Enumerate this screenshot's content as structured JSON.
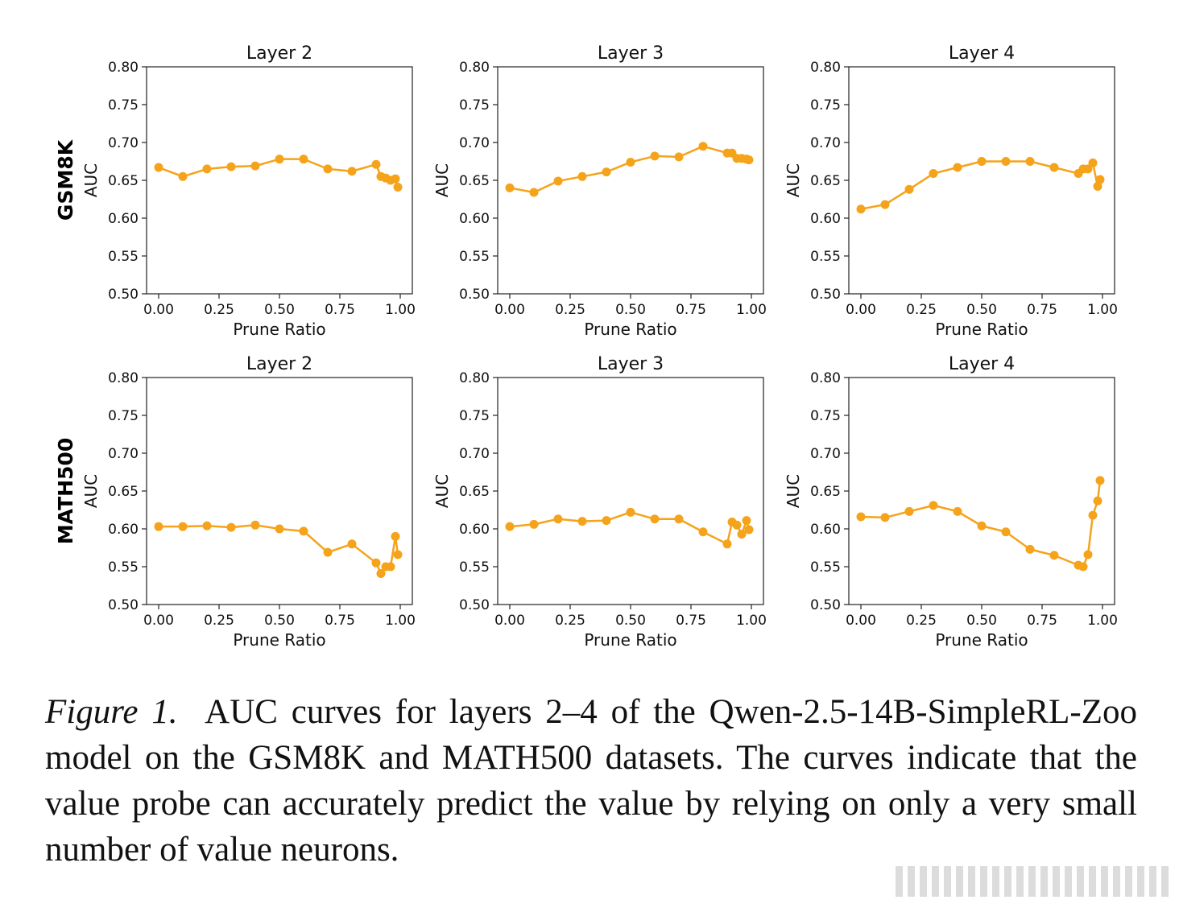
{
  "series_color": "#f5a31a",
  "row_labels": [
    "GSM8K",
    "MATH500"
  ],
  "caption": {
    "label": "Figure 1.",
    "text": "AUC curves for layers 2–4 of the Qwen-2.5-14B-SimpleRL-Zoo model on the GSM8K and MATH500 datasets. The curves indicate that the value probe can accurately predict the value by relying on only a very small number of value neurons."
  },
  "chart_data": [
    {
      "type": "line",
      "dataset": "GSM8K",
      "title": "Layer 2",
      "xlabel": "Prune Ratio",
      "ylabel": "AUC",
      "xlim": [
        -0.05,
        1.05
      ],
      "ylim": [
        0.5,
        0.8
      ],
      "xticks": [
        "0.00",
        "0.25",
        "0.50",
        "0.75",
        "1.00"
      ],
      "yticks": [
        "0.50",
        "0.55",
        "0.60",
        "0.65",
        "0.70",
        "0.75",
        "0.80"
      ],
      "x": [
        0.0,
        0.1,
        0.2,
        0.3,
        0.4,
        0.5,
        0.6,
        0.7,
        0.8,
        0.9,
        0.92,
        0.94,
        0.96,
        0.98,
        0.99
      ],
      "y": [
        0.667,
        0.655,
        0.665,
        0.668,
        0.669,
        0.678,
        0.678,
        0.665,
        0.662,
        0.671,
        0.655,
        0.653,
        0.65,
        0.652,
        0.641
      ]
    },
    {
      "type": "line",
      "dataset": "GSM8K",
      "title": "Layer 3",
      "xlabel": "Prune Ratio",
      "ylabel": "AUC",
      "xlim": [
        -0.05,
        1.05
      ],
      "ylim": [
        0.5,
        0.8
      ],
      "xticks": [
        "0.00",
        "0.25",
        "0.50",
        "0.75",
        "1.00"
      ],
      "yticks": [
        "0.50",
        "0.55",
        "0.60",
        "0.65",
        "0.70",
        "0.75",
        "0.80"
      ],
      "x": [
        0.0,
        0.1,
        0.2,
        0.3,
        0.4,
        0.5,
        0.6,
        0.7,
        0.8,
        0.9,
        0.92,
        0.94,
        0.96,
        0.98,
        0.99
      ],
      "y": [
        0.64,
        0.634,
        0.649,
        0.655,
        0.661,
        0.674,
        0.682,
        0.681,
        0.695,
        0.686,
        0.686,
        0.679,
        0.679,
        0.678,
        0.677
      ]
    },
    {
      "type": "line",
      "dataset": "GSM8K",
      "title": "Layer 4",
      "xlabel": "Prune Ratio",
      "ylabel": "AUC",
      "xlim": [
        -0.05,
        1.05
      ],
      "ylim": [
        0.5,
        0.8
      ],
      "xticks": [
        "0.00",
        "0.25",
        "0.50",
        "0.75",
        "1.00"
      ],
      "yticks": [
        "0.50",
        "0.55",
        "0.60",
        "0.65",
        "0.70",
        "0.75",
        "0.80"
      ],
      "x": [
        0.0,
        0.1,
        0.2,
        0.3,
        0.4,
        0.5,
        0.6,
        0.7,
        0.8,
        0.9,
        0.92,
        0.94,
        0.96,
        0.98,
        0.99
      ],
      "y": [
        0.612,
        0.618,
        0.638,
        0.659,
        0.667,
        0.675,
        0.675,
        0.675,
        0.667,
        0.659,
        0.665,
        0.665,
        0.673,
        0.642,
        0.651
      ]
    },
    {
      "type": "line",
      "dataset": "MATH500",
      "title": "Layer 2",
      "xlabel": "Prune Ratio",
      "ylabel": "AUC",
      "xlim": [
        -0.05,
        1.05
      ],
      "ylim": [
        0.5,
        0.8
      ],
      "xticks": [
        "0.00",
        "0.25",
        "0.50",
        "0.75",
        "1.00"
      ],
      "yticks": [
        "0.50",
        "0.55",
        "0.60",
        "0.65",
        "0.70",
        "0.75",
        "0.80"
      ],
      "x": [
        0.0,
        0.1,
        0.2,
        0.3,
        0.4,
        0.5,
        0.6,
        0.7,
        0.8,
        0.9,
        0.92,
        0.94,
        0.96,
        0.98,
        0.99
      ],
      "y": [
        0.603,
        0.603,
        0.604,
        0.602,
        0.605,
        0.6,
        0.597,
        0.569,
        0.58,
        0.555,
        0.541,
        0.55,
        0.55,
        0.59,
        0.566
      ]
    },
    {
      "type": "line",
      "dataset": "MATH500",
      "title": "Layer 3",
      "xlabel": "Prune Ratio",
      "ylabel": "AUC",
      "xlim": [
        -0.05,
        1.05
      ],
      "ylim": [
        0.5,
        0.8
      ],
      "xticks": [
        "0.00",
        "0.25",
        "0.50",
        "0.75",
        "1.00"
      ],
      "yticks": [
        "0.50",
        "0.55",
        "0.60",
        "0.65",
        "0.70",
        "0.75",
        "0.80"
      ],
      "x": [
        0.0,
        0.1,
        0.2,
        0.3,
        0.4,
        0.5,
        0.6,
        0.7,
        0.8,
        0.9,
        0.92,
        0.94,
        0.96,
        0.98,
        0.99
      ],
      "y": [
        0.603,
        0.606,
        0.613,
        0.61,
        0.611,
        0.622,
        0.613,
        0.613,
        0.596,
        0.58,
        0.609,
        0.605,
        0.593,
        0.611,
        0.599
      ]
    },
    {
      "type": "line",
      "dataset": "MATH500",
      "title": "Layer 4",
      "xlabel": "Prune Ratio",
      "ylabel": "AUC",
      "xlim": [
        -0.05,
        1.05
      ],
      "ylim": [
        0.5,
        0.8
      ],
      "xticks": [
        "0.00",
        "0.25",
        "0.50",
        "0.75",
        "1.00"
      ],
      "yticks": [
        "0.50",
        "0.55",
        "0.60",
        "0.65",
        "0.70",
        "0.75",
        "0.80"
      ],
      "x": [
        0.0,
        0.1,
        0.2,
        0.3,
        0.4,
        0.5,
        0.6,
        0.7,
        0.8,
        0.9,
        0.92,
        0.94,
        0.96,
        0.98,
        0.99
      ],
      "y": [
        0.616,
        0.615,
        0.623,
        0.631,
        0.623,
        0.604,
        0.596,
        0.573,
        0.565,
        0.552,
        0.55,
        0.566,
        0.618,
        0.637,
        0.664
      ]
    }
  ]
}
